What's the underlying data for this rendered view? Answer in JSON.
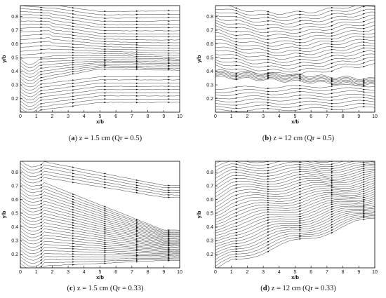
{
  "axes": {
    "xlabel": "x/b",
    "ylabel": "y/b",
    "x_ticks": [
      "0",
      "1",
      "2",
      "3",
      "4",
      "5",
      "6",
      "7",
      "8",
      "9",
      "10"
    ],
    "y_ticks": [
      "0.2",
      "0.3",
      "0.4",
      "0.5",
      "0.6",
      "0.7",
      "0.8"
    ],
    "xlim": [
      0,
      10
    ],
    "ylim": [
      0.1,
      0.88
    ]
  },
  "panels": [
    {
      "id": "a",
      "letter": "a",
      "caption": "z = 1.5 cm (Qr = 0.5)"
    },
    {
      "id": "b",
      "letter": "b",
      "caption": "z = 12 cm (Qr = 0.5)"
    },
    {
      "id": "c",
      "letter": "c",
      "caption": "z = 1.5 cm (Qr = 0.33)"
    },
    {
      "id": "d",
      "letter": "d",
      "caption": "z = 12 cm (Qr = 0.33)"
    }
  ],
  "chart_data": [
    {
      "type": "streamline",
      "xlabel": "x/b",
      "ylabel": "y/b",
      "xlim": [
        0,
        10
      ],
      "ylim": [
        0.1,
        0.88
      ],
      "feature": "shear-layer converging near y/b 0.5–0.55 for x/b 3–10"
    },
    {
      "type": "streamline",
      "xlabel": "x/b",
      "ylabel": "y/b",
      "xlim": [
        0,
        10
      ],
      "ylim": [
        0.1,
        0.88
      ],
      "feature": "dense band near y/b 0.35–0.4 for x/b 0–4"
    },
    {
      "type": "streamline",
      "xlabel": "x/b",
      "ylabel": "y/b",
      "xlim": [
        0,
        10
      ],
      "ylim": [
        0.1,
        0.88
      ],
      "feature": "lines descending toward y/b 0.15 at x/b 7–10"
    },
    {
      "type": "streamline",
      "xlabel": "x/b",
      "ylabel": "y/b",
      "xlim": [
        0,
        10
      ],
      "ylim": [
        0.1,
        0.88
      ],
      "feature": "diagonal ascending lines, dense near x/b 0.5–2"
    }
  ]
}
